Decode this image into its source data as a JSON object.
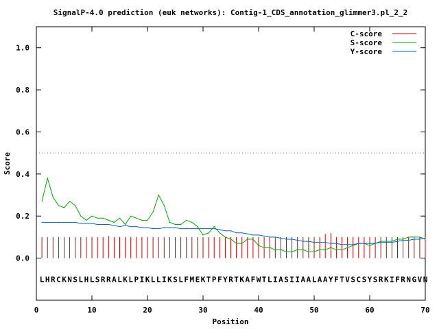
{
  "chart_data": {
    "type": "line",
    "title": "SignalP-4.0 prediction (euk networks): Contig-1_CDS_annotation_glimmer3.pl_2_2",
    "xlabel": "Position",
    "ylabel": "Score",
    "xlim": [
      0,
      70
    ],
    "ylim": [
      -0.2,
      1.1
    ],
    "xticks": [
      "0",
      "10",
      "20",
      "30",
      "40",
      "50",
      "60",
      "70"
    ],
    "xtick_values": [
      0,
      10,
      20,
      30,
      40,
      50,
      60,
      70
    ],
    "yticks": [
      "0.0",
      "0.2",
      "0.4",
      "0.6",
      "0.8",
      "1.0"
    ],
    "ytick_values": [
      0.0,
      0.2,
      0.4,
      0.6,
      0.8,
      1.0
    ],
    "grid": false,
    "legend_position": "top-right",
    "threshold": {
      "value": 0.5,
      "color": "#ff00ff",
      "style": "dotted"
    },
    "sequence": "LHRCKNSLHLSRRALKLPIKLLIKSLFMEKTPFYRTKAFWTLIASIIAALAAYFTVSCSYSRKIFRNGVN",
    "sequence_y": -0.1,
    "series": [
      {
        "name": "C-score",
        "style": "impulse",
        "color": "#cc0000",
        "x": [
          1,
          2,
          3,
          4,
          5,
          6,
          7,
          8,
          9,
          10,
          11,
          12,
          13,
          14,
          15,
          16,
          17,
          18,
          19,
          20,
          21,
          22,
          23,
          24,
          25,
          26,
          27,
          28,
          29,
          30,
          31,
          32,
          33,
          34,
          35,
          36,
          37,
          38,
          39,
          40,
          41,
          42,
          43,
          44,
          45,
          46,
          47,
          48,
          49,
          50,
          51,
          52,
          53,
          54,
          55,
          56,
          57,
          58,
          59,
          60,
          61,
          62,
          63,
          64,
          65,
          66,
          67,
          68,
          69,
          70
        ],
        "values": [
          0.1,
          0.1,
          0.1,
          0.1,
          0.1,
          0.1,
          0.1,
          0.1,
          0.1,
          0.1,
          0.1,
          0.1,
          0.105,
          0.1,
          0.1,
          0.1,
          0.1,
          0.1,
          0.1,
          0.1,
          0.1,
          0.1,
          0.1,
          0.1,
          0.1,
          0.1,
          0.1,
          0.1,
          0.1,
          0.1,
          0.1,
          0.1,
          0.1,
          0.1,
          0.1,
          0.1,
          0.1,
          0.1,
          0.1,
          0.1,
          0.1,
          0.1,
          0.1,
          0.1,
          0.1,
          0.1,
          0.1,
          0.1,
          0.1,
          0.1,
          0.1,
          0.115,
          0.12,
          0.1,
          0.1,
          0.1,
          0.1,
          0.1,
          0.1,
          0.1,
          0.1,
          0.1,
          0.1,
          0.1,
          0.1,
          0.1,
          0.1,
          0.1,
          0.1,
          0.1
        ]
      },
      {
        "name": "S-score",
        "style": "line",
        "color": "#00aa00",
        "x": [
          1,
          2,
          3,
          4,
          5,
          6,
          7,
          8,
          9,
          10,
          11,
          12,
          13,
          14,
          15,
          16,
          17,
          18,
          19,
          20,
          21,
          22,
          23,
          24,
          25,
          26,
          27,
          28,
          29,
          30,
          31,
          32,
          33,
          34,
          35,
          36,
          37,
          38,
          39,
          40,
          41,
          42,
          43,
          44,
          45,
          46,
          47,
          48,
          49,
          50,
          51,
          52,
          53,
          54,
          55,
          56,
          57,
          58,
          59,
          60,
          61,
          62,
          63,
          64,
          65,
          66,
          67,
          68,
          69,
          70
        ],
        "values": [
          0.27,
          0.38,
          0.29,
          0.25,
          0.24,
          0.27,
          0.25,
          0.2,
          0.18,
          0.2,
          0.19,
          0.19,
          0.18,
          0.17,
          0.19,
          0.16,
          0.2,
          0.19,
          0.18,
          0.18,
          0.22,
          0.3,
          0.25,
          0.17,
          0.16,
          0.16,
          0.18,
          0.17,
          0.15,
          0.11,
          0.12,
          0.15,
          0.12,
          0.1,
          0.09,
          0.07,
          0.07,
          0.09,
          0.09,
          0.06,
          0.05,
          0.05,
          0.04,
          0.04,
          0.03,
          0.03,
          0.04,
          0.04,
          0.03,
          0.03,
          0.04,
          0.04,
          0.05,
          0.04,
          0.04,
          0.05,
          0.06,
          0.07,
          0.07,
          0.06,
          0.07,
          0.08,
          0.08,
          0.08,
          0.09,
          0.09,
          0.1,
          0.1,
          0.1,
          0.09
        ]
      },
      {
        "name": "Y-score",
        "style": "line",
        "color": "#0066cc",
        "x": [
          1,
          2,
          3,
          4,
          5,
          6,
          7,
          8,
          9,
          10,
          11,
          12,
          13,
          14,
          15,
          16,
          17,
          18,
          19,
          20,
          21,
          22,
          23,
          24,
          25,
          26,
          27,
          28,
          29,
          30,
          31,
          32,
          33,
          34,
          35,
          36,
          37,
          38,
          39,
          40,
          41,
          42,
          43,
          44,
          45,
          46,
          47,
          48,
          49,
          50,
          51,
          52,
          53,
          54,
          55,
          56,
          57,
          58,
          59,
          60,
          61,
          62,
          63,
          64,
          65,
          66,
          67,
          68,
          69,
          70
        ],
        "values": [
          0.17,
          0.17,
          0.17,
          0.17,
          0.17,
          0.17,
          0.17,
          0.165,
          0.165,
          0.165,
          0.16,
          0.16,
          0.16,
          0.155,
          0.15,
          0.155,
          0.15,
          0.15,
          0.145,
          0.145,
          0.14,
          0.14,
          0.145,
          0.145,
          0.145,
          0.14,
          0.14,
          0.14,
          0.14,
          0.14,
          0.14,
          0.14,
          0.135,
          0.13,
          0.13,
          0.12,
          0.12,
          0.115,
          0.11,
          0.11,
          0.105,
          0.1,
          0.1,
          0.095,
          0.09,
          0.09,
          0.085,
          0.08,
          0.08,
          0.075,
          0.075,
          0.075,
          0.07,
          0.07,
          0.065,
          0.065,
          0.065,
          0.07,
          0.07,
          0.07,
          0.07,
          0.075,
          0.075,
          0.075,
          0.08,
          0.085,
          0.085,
          0.09,
          0.09,
          0.095
        ]
      }
    ]
  }
}
